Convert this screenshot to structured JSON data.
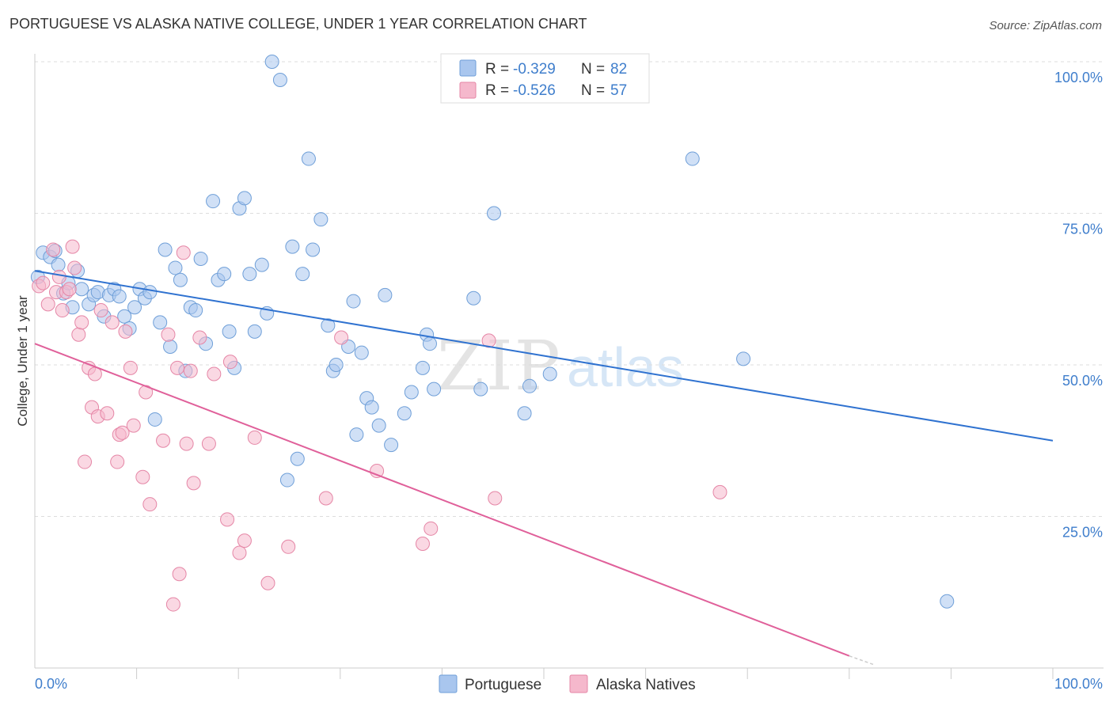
{
  "header": {
    "title": "PORTUGUESE VS ALASKA NATIVE COLLEGE, UNDER 1 YEAR CORRELATION CHART",
    "source": "Source: ZipAtlas.com"
  },
  "watermark": {
    "zip": "ZIP",
    "atlas": "atlas"
  },
  "stats_legend": [
    {
      "r_label": "R =",
      "r_value": "-0.329",
      "n_label": "N =",
      "n_value": "82",
      "color": "#a9c6ee"
    },
    {
      "r_label": "R =",
      "r_value": "-0.526",
      "n_label": "N =",
      "n_value": "57",
      "color": "#f5b8cc"
    }
  ],
  "chart_data": {
    "type": "scatter",
    "title": "PORTUGUESE VS ALASKA NATIVE COLLEGE, UNDER 1 YEAR CORRELATION CHART",
    "xlabel": "",
    "ylabel": "College, Under 1 year",
    "xlim": [
      0,
      100
    ],
    "ylim": [
      0,
      100
    ],
    "x_tick_labels": [
      {
        "value": 0,
        "label": "0.0%"
      },
      {
        "value": 100,
        "label": "100.0%"
      }
    ],
    "y_tick_labels": [
      {
        "value": 25,
        "label": "25.0%"
      },
      {
        "value": 50,
        "label": "50.0%"
      },
      {
        "value": 75,
        "label": "75.0%"
      },
      {
        "value": 100,
        "label": "100.0%"
      }
    ],
    "grid": true,
    "legend_position": "bottom-center",
    "series": [
      {
        "name": "Portuguese",
        "color": "#a9c6ee",
        "edge_color": "#6f9fd8",
        "line_color": "#2f72d0",
        "trend": {
          "x0": 0,
          "y0": 65.5,
          "x1": 100,
          "y1": 37.5,
          "dashed_to": null
        },
        "points": [
          [
            0.3,
            64.5
          ],
          [
            0.8,
            68.5
          ],
          [
            1.5,
            67.8
          ],
          [
            2.0,
            68.8
          ],
          [
            2.3,
            66.5
          ],
          [
            2.8,
            61.8
          ],
          [
            3.3,
            63.5
          ],
          [
            3.7,
            59.5
          ],
          [
            4.2,
            65.5
          ],
          [
            4.6,
            62.5
          ],
          [
            5.3,
            60.0
          ],
          [
            5.8,
            61.5
          ],
          [
            6.2,
            62.0
          ],
          [
            6.8,
            58.0
          ],
          [
            7.3,
            61.5
          ],
          [
            7.8,
            62.5
          ],
          [
            8.3,
            61.3
          ],
          [
            8.8,
            58.0
          ],
          [
            9.3,
            56.0
          ],
          [
            9.8,
            59.5
          ],
          [
            10.3,
            62.5
          ],
          [
            10.8,
            61.0
          ],
          [
            11.3,
            62.0
          ],
          [
            11.8,
            41.0
          ],
          [
            12.3,
            57.0
          ],
          [
            12.8,
            69.0
          ],
          [
            13.3,
            53.0
          ],
          [
            13.8,
            66.0
          ],
          [
            14.3,
            64.0
          ],
          [
            14.8,
            49.0
          ],
          [
            15.3,
            59.5
          ],
          [
            15.8,
            59.0
          ],
          [
            16.3,
            67.5
          ],
          [
            16.8,
            53.5
          ],
          [
            17.5,
            77.0
          ],
          [
            18.0,
            64.0
          ],
          [
            18.6,
            65.0
          ],
          [
            19.1,
            55.5
          ],
          [
            19.6,
            49.5
          ],
          [
            20.1,
            75.8
          ],
          [
            20.6,
            77.5
          ],
          [
            21.1,
            65.0
          ],
          [
            21.6,
            55.5
          ],
          [
            22.3,
            66.5
          ],
          [
            22.8,
            58.5
          ],
          [
            23.3,
            100.0
          ],
          [
            24.1,
            97.0
          ],
          [
            24.8,
            31.0
          ],
          [
            25.3,
            69.5
          ],
          [
            25.8,
            34.5
          ],
          [
            26.3,
            65.0
          ],
          [
            26.9,
            84.0
          ],
          [
            27.3,
            69.0
          ],
          [
            28.1,
            74.0
          ],
          [
            28.8,
            56.5
          ],
          [
            29.3,
            49.0
          ],
          [
            29.6,
            50.0
          ],
          [
            30.8,
            53.0
          ],
          [
            31.3,
            60.5
          ],
          [
            31.6,
            38.5
          ],
          [
            32.1,
            52.0
          ],
          [
            32.6,
            44.5
          ],
          [
            33.1,
            43.0
          ],
          [
            33.8,
            40.0
          ],
          [
            34.4,
            61.5
          ],
          [
            35.0,
            36.8
          ],
          [
            36.3,
            42.0
          ],
          [
            37.0,
            45.5
          ],
          [
            38.1,
            49.5
          ],
          [
            38.5,
            55.0
          ],
          [
            38.8,
            53.5
          ],
          [
            39.2,
            46.0
          ],
          [
            41.0,
            100.0
          ],
          [
            43.1,
            61.0
          ],
          [
            43.8,
            46.0
          ],
          [
            45.1,
            75.0
          ],
          [
            48.1,
            42.0
          ],
          [
            48.6,
            46.5
          ],
          [
            50.6,
            48.5
          ],
          [
            64.6,
            84.0
          ],
          [
            69.6,
            51.0
          ],
          [
            89.6,
            11.0
          ]
        ]
      },
      {
        "name": "Alaska Natives",
        "color": "#f5b8cc",
        "edge_color": "#e586a6",
        "line_color": "#e0609a",
        "trend": {
          "x0": 0,
          "y0": 53.5,
          "x1": 80,
          "y1": 2.0,
          "dashed_to": [
            82.5,
            0.5
          ]
        },
        "points": [
          [
            0.4,
            63.0
          ],
          [
            0.8,
            63.5
          ],
          [
            1.3,
            60.0
          ],
          [
            1.8,
            69.0
          ],
          [
            2.1,
            62.0
          ],
          [
            2.4,
            64.5
          ],
          [
            2.7,
            59.0
          ],
          [
            3.1,
            62.0
          ],
          [
            3.4,
            62.5
          ],
          [
            3.7,
            69.5
          ],
          [
            3.9,
            66.0
          ],
          [
            4.3,
            55.0
          ],
          [
            4.6,
            57.0
          ],
          [
            4.9,
            34.0
          ],
          [
            5.3,
            49.5
          ],
          [
            5.6,
            43.0
          ],
          [
            5.9,
            48.5
          ],
          [
            6.2,
            41.5
          ],
          [
            6.5,
            59.0
          ],
          [
            7.1,
            42.0
          ],
          [
            7.6,
            57.0
          ],
          [
            8.1,
            34.0
          ],
          [
            8.3,
            38.5
          ],
          [
            8.6,
            38.8
          ],
          [
            8.9,
            55.5
          ],
          [
            9.4,
            49.5
          ],
          [
            9.7,
            40.0
          ],
          [
            10.6,
            31.5
          ],
          [
            10.9,
            45.5
          ],
          [
            11.3,
            27.0
          ],
          [
            12.6,
            37.5
          ],
          [
            13.1,
            55.0
          ],
          [
            13.6,
            10.5
          ],
          [
            14.0,
            49.5
          ],
          [
            14.2,
            15.5
          ],
          [
            14.6,
            68.5
          ],
          [
            14.9,
            37.0
          ],
          [
            15.3,
            49.0
          ],
          [
            15.6,
            30.5
          ],
          [
            16.2,
            54.5
          ],
          [
            17.1,
            37.0
          ],
          [
            17.6,
            48.5
          ],
          [
            18.9,
            24.5
          ],
          [
            19.2,
            50.5
          ],
          [
            20.1,
            19.0
          ],
          [
            20.6,
            21.0
          ],
          [
            21.6,
            38.0
          ],
          [
            22.9,
            14.0
          ],
          [
            24.9,
            20.0
          ],
          [
            28.6,
            28.0
          ],
          [
            30.1,
            54.5
          ],
          [
            33.6,
            32.5
          ],
          [
            38.1,
            20.5
          ],
          [
            38.9,
            23.0
          ],
          [
            44.6,
            54.0
          ],
          [
            45.2,
            28.0
          ],
          [
            67.3,
            29.0
          ]
        ]
      }
    ]
  }
}
